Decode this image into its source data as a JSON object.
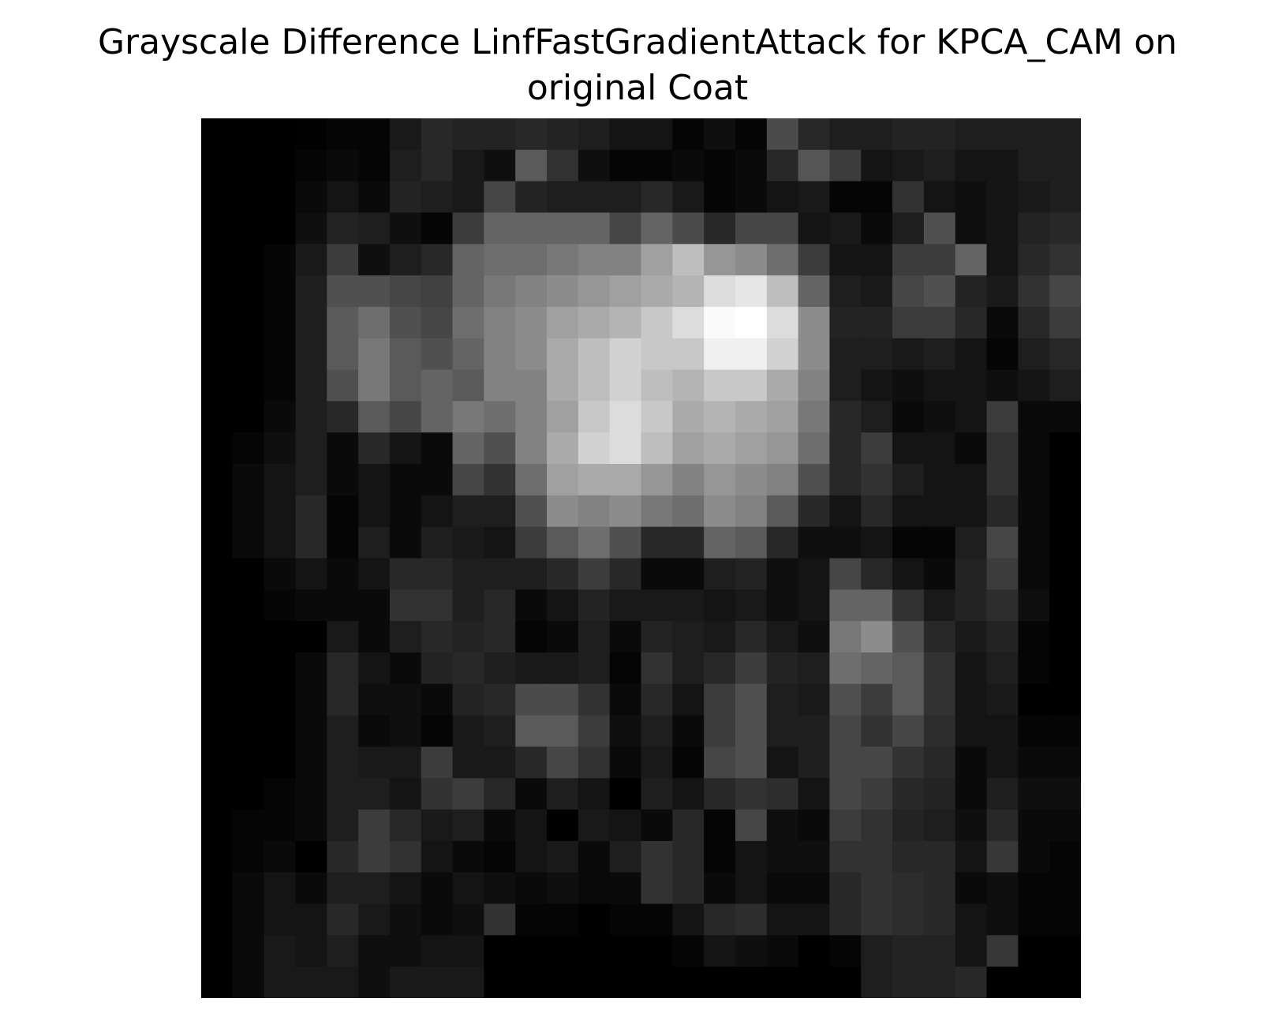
{
  "chart_data": {
    "type": "heatmap",
    "title_lines": [
      "Grayscale Difference LinfFastGradientAttack for KPCA_CAM on",
      "original Coat"
    ],
    "xlabel": "",
    "ylabel": "",
    "axes_visible": false,
    "colormap": "gray",
    "value_range": [
      0,
      255
    ],
    "rows": 28,
    "cols": 28,
    "values": [
      [
        0,
        0,
        0,
        2,
        5,
        5,
        25,
        40,
        35,
        35,
        40,
        35,
        30,
        20,
        20,
        5,
        15,
        5,
        75,
        40,
        30,
        30,
        35,
        35,
        30,
        30,
        30,
        30
      ],
      [
        0,
        0,
        0,
        5,
        10,
        5,
        30,
        40,
        25,
        15,
        90,
        50,
        15,
        5,
        5,
        10,
        5,
        10,
        40,
        85,
        60,
        20,
        25,
        30,
        20,
        20,
        30,
        30
      ],
      [
        0,
        0,
        0,
        10,
        20,
        10,
        35,
        30,
        25,
        70,
        35,
        30,
        30,
        30,
        40,
        25,
        5,
        10,
        20,
        25,
        5,
        5,
        50,
        20,
        15,
        20,
        25,
        30
      ],
      [
        0,
        0,
        0,
        15,
        35,
        30,
        15,
        5,
        60,
        100,
        100,
        100,
        100,
        70,
        100,
        75,
        40,
        70,
        70,
        20,
        25,
        10,
        30,
        80,
        15,
        20,
        35,
        40
      ],
      [
        0,
        0,
        5,
        25,
        60,
        15,
        30,
        40,
        100,
        110,
        110,
        120,
        130,
        130,
        160,
        190,
        150,
        140,
        110,
        60,
        20,
        20,
        60,
        60,
        100,
        20,
        40,
        50
      ],
      [
        0,
        0,
        5,
        30,
        80,
        80,
        70,
        65,
        100,
        120,
        130,
        140,
        150,
        160,
        170,
        180,
        220,
        230,
        190,
        100,
        30,
        25,
        70,
        80,
        35,
        25,
        50,
        70
      ],
      [
        0,
        0,
        5,
        30,
        90,
        110,
        80,
        70,
        110,
        130,
        140,
        160,
        170,
        180,
        200,
        220,
        250,
        255,
        220,
        140,
        35,
        35,
        60,
        60,
        40,
        10,
        40,
        60
      ],
      [
        0,
        0,
        5,
        30,
        90,
        120,
        90,
        80,
        100,
        130,
        140,
        170,
        190,
        210,
        200,
        200,
        240,
        240,
        210,
        140,
        30,
        30,
        25,
        30,
        20,
        5,
        30,
        40
      ],
      [
        0,
        0,
        5,
        30,
        80,
        120,
        90,
        100,
        90,
        130,
        130,
        170,
        190,
        210,
        190,
        180,
        200,
        200,
        170,
        130,
        30,
        20,
        15,
        20,
        20,
        15,
        20,
        30
      ],
      [
        0,
        0,
        10,
        30,
        40,
        90,
        70,
        100,
        120,
        110,
        130,
        160,
        200,
        220,
        200,
        170,
        180,
        170,
        160,
        120,
        40,
        30,
        10,
        15,
        20,
        60,
        10,
        10
      ],
      [
        0,
        5,
        15,
        30,
        10,
        40,
        20,
        10,
        100,
        80,
        130,
        170,
        210,
        220,
        190,
        160,
        170,
        160,
        150,
        110,
        40,
        60,
        20,
        20,
        10,
        50,
        10,
        0
      ],
      [
        0,
        10,
        20,
        30,
        10,
        20,
        10,
        10,
        70,
        50,
        110,
        160,
        170,
        170,
        150,
        130,
        150,
        140,
        130,
        80,
        40,
        50,
        30,
        20,
        20,
        50,
        10,
        0
      ],
      [
        0,
        10,
        20,
        40,
        5,
        20,
        10,
        20,
        30,
        30,
        80,
        140,
        130,
        140,
        120,
        110,
        140,
        130,
        90,
        40,
        20,
        40,
        20,
        20,
        20,
        40,
        10,
        0
      ],
      [
        0,
        10,
        20,
        40,
        5,
        30,
        10,
        30,
        25,
        20,
        60,
        90,
        110,
        80,
        40,
        40,
        100,
        90,
        40,
        15,
        15,
        20,
        5,
        5,
        30,
        70,
        10,
        0
      ],
      [
        0,
        0,
        10,
        20,
        10,
        20,
        40,
        40,
        30,
        30,
        30,
        40,
        60,
        40,
        10,
        10,
        30,
        35,
        15,
        20,
        70,
        40,
        20,
        10,
        35,
        60,
        10,
        0
      ],
      [
        0,
        0,
        5,
        10,
        10,
        10,
        50,
        50,
        30,
        40,
        10,
        20,
        35,
        25,
        25,
        25,
        20,
        25,
        15,
        20,
        100,
        100,
        50,
        25,
        35,
        45,
        15,
        0
      ],
      [
        0,
        0,
        0,
        0,
        25,
        10,
        30,
        40,
        35,
        40,
        5,
        10,
        30,
        10,
        35,
        30,
        25,
        40,
        25,
        15,
        120,
        140,
        80,
        40,
        25,
        35,
        5,
        0
      ],
      [
        0,
        0,
        0,
        10,
        40,
        20,
        10,
        35,
        40,
        30,
        25,
        25,
        30,
        5,
        50,
        30,
        40,
        60,
        35,
        30,
        110,
        100,
        90,
        50,
        20,
        30,
        5,
        0
      ],
      [
        0,
        0,
        0,
        10,
        40,
        15,
        15,
        10,
        35,
        40,
        75,
        75,
        50,
        10,
        40,
        20,
        60,
        80,
        30,
        25,
        80,
        60,
        90,
        50,
        20,
        25,
        0,
        0
      ],
      [
        0,
        0,
        0,
        10,
        30,
        10,
        15,
        5,
        25,
        30,
        90,
        90,
        60,
        15,
        30,
        10,
        60,
        80,
        30,
        30,
        70,
        50,
        70,
        45,
        20,
        20,
        5,
        5
      ],
      [
        0,
        0,
        0,
        10,
        30,
        25,
        25,
        60,
        25,
        25,
        40,
        70,
        50,
        10,
        25,
        5,
        70,
        80,
        20,
        30,
        70,
        70,
        50,
        40,
        10,
        20,
        10,
        10
      ],
      [
        0,
        0,
        5,
        10,
        30,
        30,
        20,
        50,
        60,
        40,
        10,
        30,
        20,
        0,
        30,
        20,
        40,
        50,
        45,
        20,
        70,
        60,
        40,
        35,
        10,
        30,
        15,
        15
      ],
      [
        0,
        5,
        5,
        10,
        30,
        60,
        40,
        25,
        30,
        10,
        20,
        0,
        25,
        20,
        10,
        40,
        5,
        70,
        15,
        10,
        60,
        50,
        35,
        30,
        15,
        40,
        10,
        10
      ],
      [
        0,
        5,
        10,
        0,
        40,
        60,
        50,
        20,
        10,
        5,
        20,
        25,
        10,
        30,
        50,
        40,
        5,
        20,
        15,
        15,
        50,
        50,
        40,
        40,
        20,
        55,
        10,
        5
      ],
      [
        0,
        10,
        20,
        10,
        30,
        30,
        20,
        10,
        20,
        15,
        10,
        15,
        10,
        10,
        50,
        40,
        10,
        20,
        10,
        10,
        40,
        50,
        45,
        40,
        10,
        15,
        5,
        5
      ],
      [
        0,
        10,
        20,
        20,
        40,
        25,
        15,
        10,
        15,
        50,
        5,
        5,
        0,
        5,
        5,
        20,
        40,
        45,
        20,
        20,
        40,
        50,
        45,
        40,
        20,
        15,
        5,
        5
      ],
      [
        0,
        10,
        25,
        20,
        30,
        15,
        15,
        20,
        20,
        0,
        0,
        0,
        0,
        0,
        0,
        5,
        20,
        15,
        10,
        0,
        5,
        30,
        35,
        35,
        20,
        55,
        0,
        0
      ],
      [
        0,
        10,
        25,
        25,
        25,
        15,
        25,
        25,
        25,
        0,
        0,
        0,
        0,
        0,
        0,
        0,
        0,
        0,
        0,
        0,
        0,
        30,
        35,
        35,
        40,
        0,
        0,
        0
      ]
    ]
  }
}
